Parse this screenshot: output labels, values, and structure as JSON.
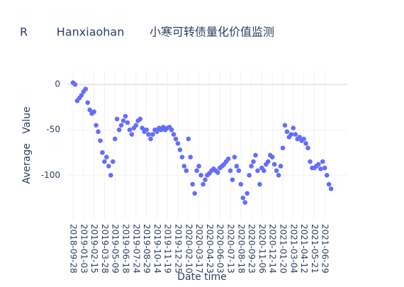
{
  "chart_data": {
    "type": "scatter",
    "title": "R        Hanxiaohan       小寒可转债量化价值监测",
    "x_label": "Date time",
    "y_label": "Average   Value",
    "color": "#636efa",
    "grid": true,
    "ylim": [
      -149,
      15
    ],
    "yticks": [
      0,
      -50,
      -100
    ],
    "categories": [
      "2018-09-28",
      null,
      null,
      null,
      null,
      "2019-01-03",
      null,
      null,
      null,
      null,
      "2019-02-15",
      null,
      null,
      null,
      null,
      "2019-03-28",
      null,
      null,
      null,
      null,
      "2019-05-09",
      null,
      null,
      null,
      null,
      "2019-06-18",
      null,
      null,
      null,
      null,
      "2019-07-24",
      null,
      null,
      null,
      null,
      "2019-08-29",
      null,
      null,
      null,
      null,
      "2019-10-14",
      null,
      null,
      null,
      null,
      "2019-11-19",
      null,
      null,
      null,
      null,
      "2019-12-25",
      null,
      null,
      null,
      null,
      "2020-02-10",
      null,
      null,
      null,
      null,
      "2020-03-17",
      null,
      null,
      null,
      null,
      "2020-04-23",
      null,
      null,
      null,
      null,
      "2020-06-03",
      null,
      null,
      null,
      null,
      "2020-07-13",
      null,
      null,
      null,
      null,
      "2020-08-18",
      null,
      null,
      null,
      null,
      "2020-09-23",
      null,
      null,
      null,
      null,
      "2020-11-06",
      null,
      null,
      null,
      null,
      "2020-12-14",
      null,
      null,
      null,
      null,
      "2021-01-20",
      null,
      null,
      null,
      null,
      "2021-03-04",
      null,
      null,
      null,
      null,
      "2021-04-12",
      null,
      null,
      null,
      null,
      "2021-05-21",
      null,
      null,
      null,
      null,
      "2021-06-29",
      null,
      null,
      null
    ],
    "values": [
      2,
      0,
      -18,
      -15,
      -12,
      -8,
      -5,
      -20,
      -28,
      -32,
      -30,
      -45,
      -52,
      -62,
      -75,
      -85,
      -80,
      -90,
      -100,
      -85,
      -60,
      -38,
      -50,
      -45,
      -40,
      -35,
      -42,
      -50,
      -55,
      -48,
      -45,
      -40,
      -38,
      -48,
      -52,
      -50,
      -55,
      -60,
      -55,
      -50,
      -52,
      -48,
      -50,
      -47,
      -50,
      -48,
      -47,
      -50,
      -55,
      -60,
      -65,
      -72,
      -80,
      -90,
      -95,
      -60,
      -80,
      -110,
      -120,
      -95,
      -90,
      -100,
      -110,
      -105,
      -100,
      -98,
      -95,
      -93,
      -95,
      -97,
      -92,
      -90,
      -88,
      -85,
      -82,
      -95,
      -105,
      -80,
      -90,
      -95,
      -110,
      -125,
      -130,
      -120,
      -100,
      -90,
      -85,
      -78,
      -95,
      -110,
      -92,
      -95,
      -88,
      -85,
      -78,
      -80,
      -88,
      -95,
      -100,
      -90,
      -70,
      -45,
      -52,
      -58,
      -55,
      -48,
      -55,
      -60,
      -58,
      -62,
      -60,
      -65,
      -70,
      -85,
      -92,
      -92,
      -90,
      -88,
      -93,
      -85,
      -92,
      -100,
      -110,
      -115
    ]
  }
}
